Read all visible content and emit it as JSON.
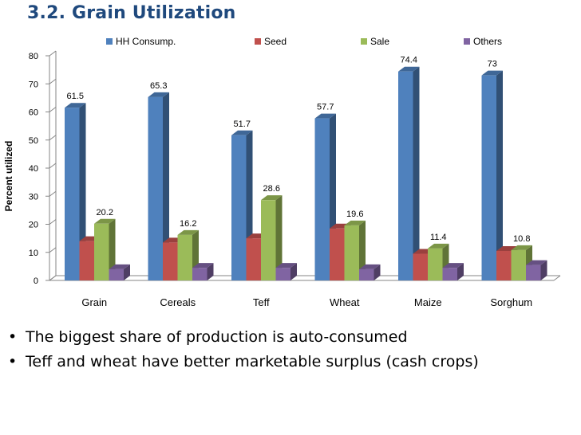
{
  "slide": {
    "title": "3.2. Grain Utilization",
    "bullets": [
      "The biggest share of production is auto-consumed",
      "Teff  and wheat have better marketable surplus (cash crops)"
    ],
    "bullet_glyph": "•"
  },
  "chart_data": {
    "type": "bar",
    "title": "",
    "xlabel": "",
    "ylabel": "Percent utilized",
    "categories": [
      "Grain",
      "Cereals",
      "Teff",
      "Wheat",
      "Maize",
      "Sorghum"
    ],
    "series": [
      {
        "name": "HH Consump.",
        "color": "#4f81bd",
        "values": [
          61.5,
          65.3,
          51.7,
          57.7,
          74.4,
          73
        ],
        "labels": [
          "61.5",
          "65.3",
          "51.7",
          "57.7",
          "74.4",
          "73"
        ]
      },
      {
        "name": "Seed",
        "color": "#c0504d",
        "values": [
          14,
          13.5,
          15,
          18.5,
          9.5,
          10.5
        ],
        "labels": [
          "",
          "",
          "",
          "",
          "",
          ""
        ]
      },
      {
        "name": "Sale",
        "color": "#9bbb59",
        "values": [
          20.2,
          16.2,
          28.6,
          19.6,
          11.4,
          10.8
        ],
        "labels": [
          "20.2",
          "16.2",
          "28.6",
          "19.6",
          "11.4",
          "10.8"
        ]
      },
      {
        "name": "Others",
        "color": "#8064a2",
        "values": [
          4,
          4.5,
          4.5,
          4,
          4.5,
          5.5
        ],
        "labels": [
          "",
          "",
          "",
          "",
          "",
          ""
        ]
      }
    ],
    "ylim": [
      0,
      80
    ],
    "yticks": [
      0,
      10,
      20,
      30,
      40,
      50,
      60,
      70,
      80
    ],
    "grid": false,
    "legend_position": "top",
    "style": "3d-clustered-column"
  }
}
